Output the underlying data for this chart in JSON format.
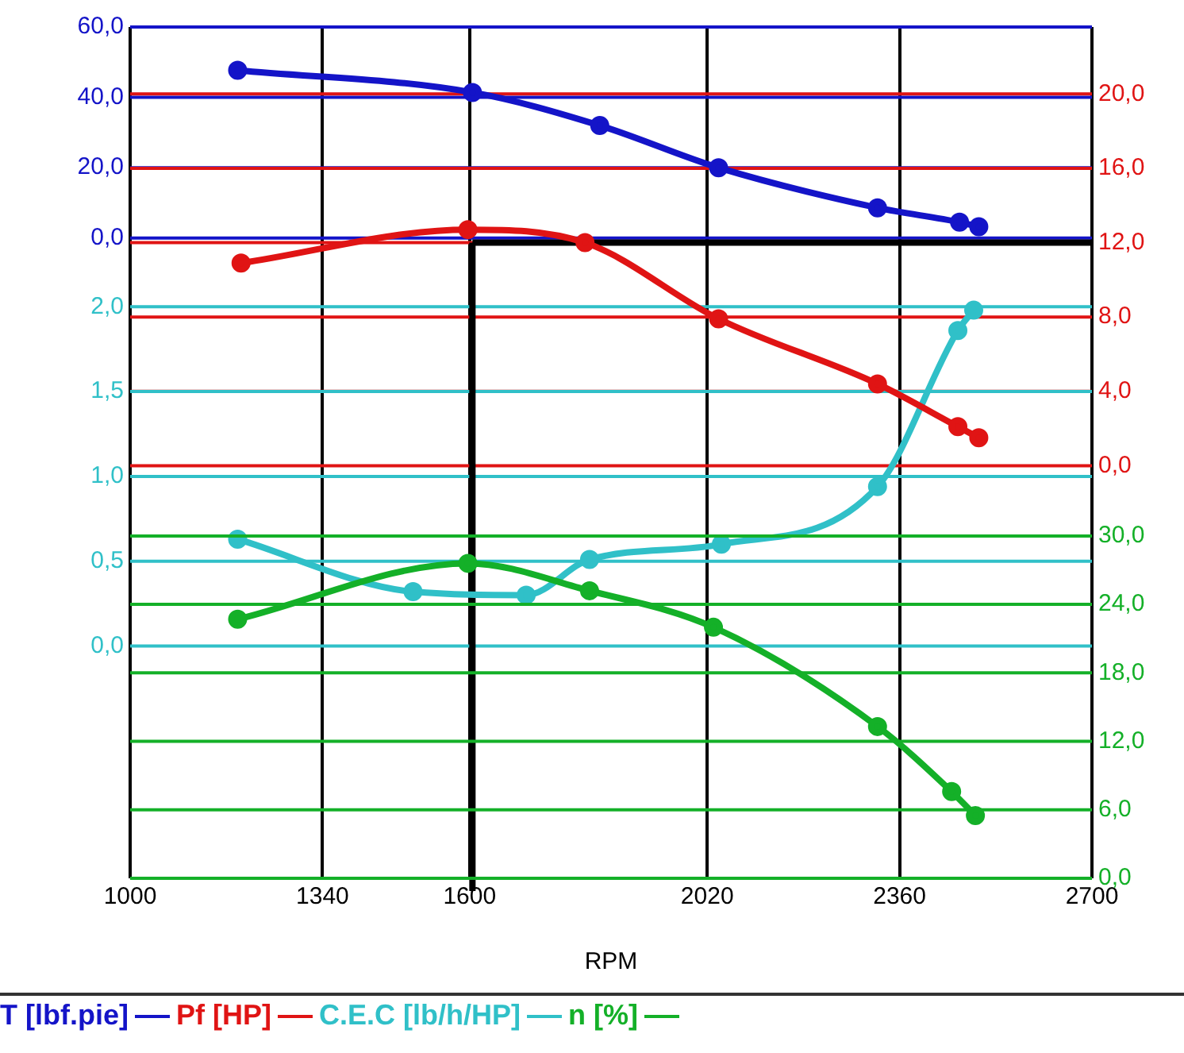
{
  "chart_data": [
    {
      "type": "line",
      "xlabel": "RPM",
      "xlim": [
        1000,
        2700
      ],
      "xticks": [
        1000,
        1340,
        1600,
        2020,
        2360,
        2700
      ],
      "ylim": [
        -182,
        60
      ],
      "yticks": [
        {
          "value": 0,
          "label": "0,0"
        },
        {
          "value": 20,
          "label": "20,0"
        },
        {
          "value": 40,
          "label": "40,0"
        },
        {
          "value": 60,
          "label": "60,0"
        }
      ],
      "y2lim": [
        -22.2,
        23.6
      ],
      "y2ticks": [
        {
          "value": 0,
          "label": "0,0"
        },
        {
          "value": 4,
          "label": "4,0"
        },
        {
          "value": 8,
          "label": "8,0"
        },
        {
          "value": 12,
          "label": "12,0"
        },
        {
          "value": 16,
          "label": "16,0"
        },
        {
          "value": 20,
          "label": "20,0"
        }
      ],
      "y3lim": [
        -1.37,
        3.65
      ],
      "y3ticks": [
        {
          "value": 0,
          "label": "0,0"
        },
        {
          "value": 0.5,
          "label": "0,5"
        },
        {
          "value": 1,
          "label": "1,0"
        },
        {
          "value": 1.5,
          "label": "1,5"
        },
        {
          "value": 2,
          "label": "2,0"
        }
      ],
      "series": [
        {
          "name": "T [lbf.pie]",
          "color": "#1414c8",
          "x": [
            1190,
            1605,
            1830,
            2040,
            2321,
            2466,
            2500
          ],
          "values": [
            47.7,
            41.4,
            32,
            20,
            8.6,
            4.5,
            3.2
          ]
        },
        {
          "name": "Pf [HP]",
          "color": "#e01414",
          "axis": "y2",
          "x": [
            1196,
            1597,
            1804,
            2040,
            2321,
            2463,
            2500
          ],
          "values": [
            10.9,
            12.7,
            12.0,
            7.9,
            4.4,
            2.1,
            1.5
          ]
        },
        {
          "name": "C.E.C [lb/h/HP]",
          "color": "#30c0c8",
          "axis": "y3",
          "x": [
            1190,
            1500,
            1700,
            1812,
            2045,
            2321,
            2463,
            2491
          ],
          "values": [
            0.63,
            0.32,
            0.3,
            0.51,
            0.6,
            0.94,
            1.86,
            1.98
          ]
        }
      ],
      "ref_lines": [
        {
          "axis": "x",
          "value": 1605,
          "color": "#000000"
        },
        {
          "axis": "y2",
          "value": 12,
          "color": "#000000"
        }
      ],
      "grid": true,
      "legend": "bottom",
      "marker": "circle",
      "line_style": "solid"
    },
    {
      "type": "line",
      "xlim": [
        1000,
        2700
      ],
      "xticks": [
        1000,
        1340,
        1600,
        2020,
        2360,
        2700
      ],
      "y2lim": [
        0,
        74.6
      ],
      "y2ticks": [
        {
          "value": 0,
          "label": "0,0"
        },
        {
          "value": 6,
          "label": "6,0"
        },
        {
          "value": 12,
          "label": "12,0"
        },
        {
          "value": 18,
          "label": "18,0"
        },
        {
          "value": 24,
          "label": "24,0"
        },
        {
          "value": 30,
          "label": "30,0"
        }
      ],
      "series": [
        {
          "name": "n [%]",
          "color": "#14b028",
          "axis": "y2",
          "x": [
            1190,
            1597,
            1812,
            2031,
            2321,
            2452,
            2494
          ],
          "values": [
            22.7,
            27.6,
            25.2,
            22.0,
            13.3,
            7.6,
            5.5
          ]
        }
      ],
      "grid": "y",
      "tick_labels": "y",
      "legend": "bottom",
      "marker": "circle",
      "line_style": "solid"
    }
  ]
}
